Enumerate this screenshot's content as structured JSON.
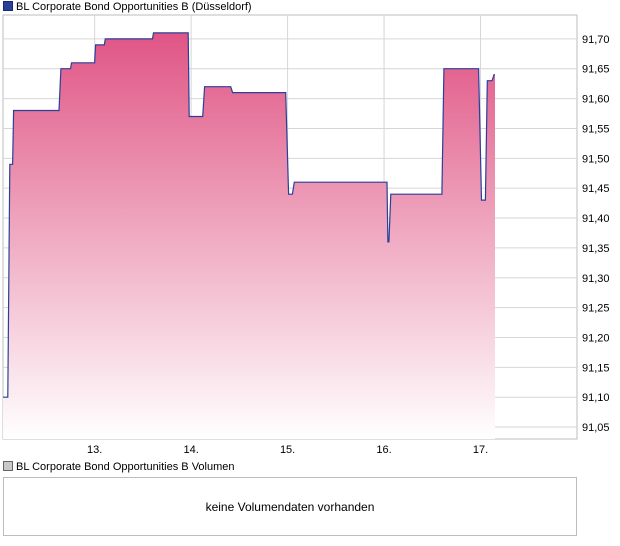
{
  "legend": {
    "price_label": "BL Corporate Bond Opportunities B (Düsseldorf)",
    "volume_label": "BL Corporate Bond Opportunities B Volumen"
  },
  "volume": {
    "empty_message": "keine Volumendaten vorhanden"
  },
  "colors": {
    "line": "#2a3f9a",
    "fill_top": "#e05585",
    "fill_bottom": "#ffffff",
    "grid": "#d6d6d6",
    "border": "#bdbdbd"
  },
  "chart_data": {
    "type": "area",
    "title": "BL Corporate Bond Opportunities B (Düsseldorf)",
    "x_ticks": [
      {
        "label": "13.",
        "x": 13.0
      },
      {
        "label": "14.",
        "x": 14.0
      },
      {
        "label": "15.",
        "x": 15.0
      },
      {
        "label": "16.",
        "x": 16.0
      },
      {
        "label": "17.",
        "x": 17.0
      }
    ],
    "y_ticks": [
      "91,05",
      "91,10",
      "91,15",
      "91,20",
      "91,25",
      "91,30",
      "91,35",
      "91,40",
      "91,45",
      "91,50",
      "91,55",
      "91,60",
      "91,65",
      "91,70"
    ],
    "xlim": [
      12.05,
      18.0
    ],
    "ylim": [
      91.03,
      91.74
    ],
    "grid": true,
    "series": [
      {
        "x": [
          12.05,
          12.1,
          12.12,
          12.15,
          12.16,
          12.2,
          12.63,
          12.65,
          12.75,
          12.76,
          13.0,
          13.01,
          13.1,
          13.11,
          13.25,
          13.26,
          13.6,
          13.61,
          13.97,
          13.98,
          14.12,
          14.14,
          14.41,
          14.43,
          14.98,
          15.01,
          15.05,
          15.07,
          16.03,
          16.04,
          16.05,
          16.07,
          16.6,
          16.62,
          16.75,
          16.77,
          16.98,
          17.01,
          17.05,
          17.07,
          17.12,
          17.14,
          17.15
        ],
        "y": [
          91.1,
          91.1,
          91.49,
          91.49,
          91.58,
          91.58,
          91.58,
          91.65,
          91.65,
          91.66,
          91.66,
          91.69,
          91.69,
          91.7,
          91.7,
          91.7,
          91.7,
          91.71,
          91.71,
          91.57,
          91.57,
          91.62,
          91.62,
          91.61,
          91.61,
          91.44,
          91.44,
          91.46,
          91.46,
          91.36,
          91.36,
          91.44,
          91.44,
          91.65,
          91.65,
          91.65,
          91.65,
          91.43,
          91.43,
          91.63,
          91.63,
          91.64,
          91.64
        ]
      }
    ]
  }
}
